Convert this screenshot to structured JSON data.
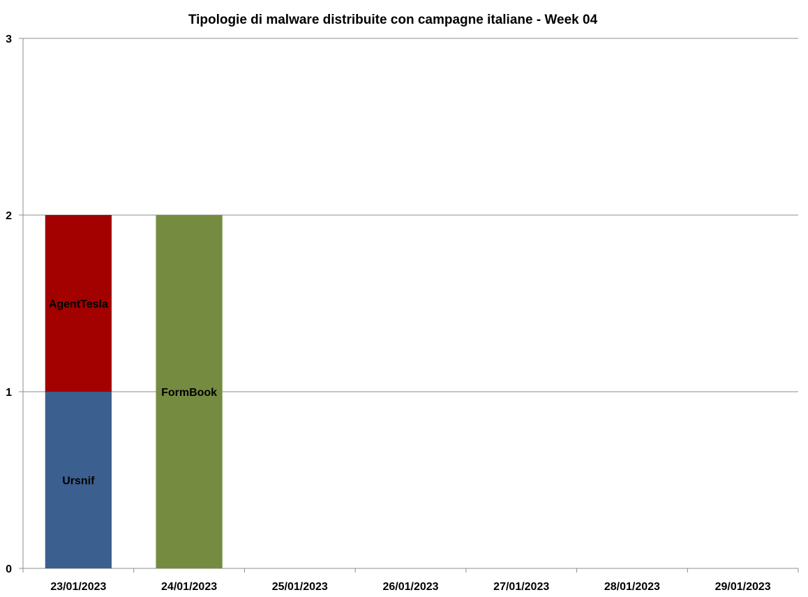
{
  "chart_data": {
    "type": "bar",
    "stacked": true,
    "title": "Tipologie di malware distribuite con campagne italiane - Week 04",
    "xlabel": "",
    "ylabel": "",
    "categories": [
      "23/01/2023",
      "24/01/2023",
      "25/01/2023",
      "26/01/2023",
      "27/01/2023",
      "28/01/2023",
      "29/01/2023"
    ],
    "ylim": [
      0,
      3
    ],
    "yticks": [
      "0",
      "1",
      "2",
      "3"
    ],
    "grid": true,
    "legend": "none",
    "series": [
      {
        "name": "Ursnif",
        "color": "#3b5f8f",
        "values": [
          1,
          0,
          0,
          0,
          0,
          0,
          0
        ]
      },
      {
        "name": "AgentTesla",
        "color": "#a30000",
        "values": [
          1,
          0,
          0,
          0,
          0,
          0,
          0
        ]
      },
      {
        "name": "FormBook",
        "color": "#758b40",
        "values": [
          0,
          2,
          0,
          0,
          0,
          0,
          0
        ]
      }
    ]
  }
}
